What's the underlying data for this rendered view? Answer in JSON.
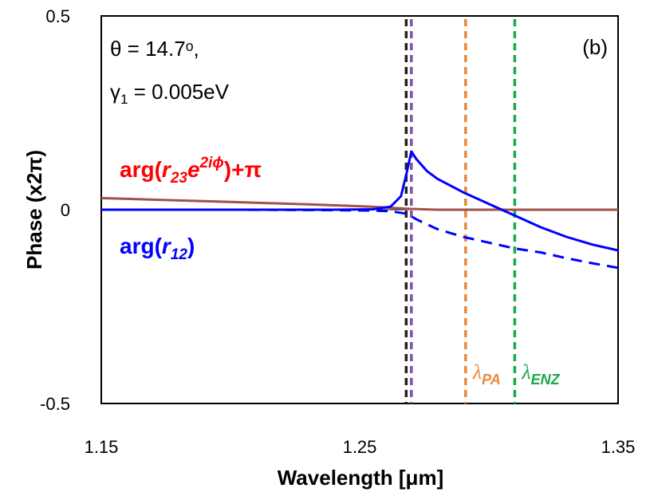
{
  "chart_data": {
    "type": "line",
    "title": "",
    "panel_label": "(b)",
    "xlabel": "Wavelength [μm]",
    "ylabel": "Phase (x2π)",
    "xlim": [
      1.15,
      1.35
    ],
    "ylim": [
      -0.5,
      0.5
    ],
    "xticks": [
      "1.15",
      "1.25",
      "1.35"
    ],
    "yticks": [
      "0.5",
      "0",
      "-0.5"
    ],
    "grid": false,
    "annotations": {
      "theta": "θ = 14.7ᵒ,",
      "gamma_symbol": "γ",
      "gamma_sub": "1",
      "gamma_value": " = 0.005eV"
    },
    "series": [
      {
        "label_pre": "arg(",
        "label_r": "r",
        "label_sub": "23",
        "label_e": "e",
        "label_sup": "2iϕ",
        "label_post": ")+π",
        "label_color": "#ff0000",
        "color": "#a0524a",
        "style": "solid",
        "x": [
          1.15,
          1.17,
          1.19,
          1.21,
          1.23,
          1.25,
          1.26,
          1.265,
          1.27,
          1.275,
          1.28,
          1.29,
          1.3,
          1.32,
          1.35
        ],
        "y": [
          0.03,
          0.026,
          0.022,
          0.018,
          0.014,
          0.009,
          0.006,
          0.004,
          0.002,
          0.001,
          0.0,
          0.0,
          0.0,
          0.0,
          0.0
        ]
      },
      {
        "label_pre": "arg(",
        "label_r": "r",
        "label_sub": "12",
        "label_post": ")",
        "label_color": "#0000ff",
        "color": "#0000ff",
        "style": "solid",
        "x": [
          1.15,
          1.2,
          1.24,
          1.255,
          1.262,
          1.266,
          1.268,
          1.27,
          1.272,
          1.276,
          1.28,
          1.29,
          1.3,
          1.31,
          1.32,
          1.33,
          1.34,
          1.35
        ],
        "y": [
          0.0,
          0.0,
          0.0,
          0.001,
          0.008,
          0.035,
          0.09,
          0.15,
          0.13,
          0.1,
          0.08,
          0.045,
          0.015,
          -0.015,
          -0.045,
          -0.07,
          -0.09,
          -0.105
        ]
      },
      {
        "color": "#0000ff",
        "style": "dashed",
        "x": [
          1.15,
          1.2,
          1.24,
          1.255,
          1.262,
          1.268,
          1.272,
          1.28,
          1.29,
          1.3,
          1.31,
          1.32,
          1.33,
          1.34,
          1.35
        ],
        "y": [
          0.0,
          0.0,
          -0.001,
          -0.002,
          -0.004,
          -0.01,
          -0.025,
          -0.05,
          -0.07,
          -0.085,
          -0.1,
          -0.11,
          -0.125,
          -0.138,
          -0.15
        ]
      }
    ],
    "vlines": [
      {
        "x": 1.268,
        "color": "#222222",
        "label": "",
        "label_sub": ""
      },
      {
        "x": 1.27,
        "color": "#7b52a8",
        "label": "",
        "label_sub": ""
      },
      {
        "x": 1.291,
        "color": "#e8883a",
        "label": "λ",
        "label_sub": "PA"
      },
      {
        "x": 1.31,
        "color": "#1aaa4a",
        "label": "λ",
        "label_sub": "ENZ"
      }
    ]
  }
}
